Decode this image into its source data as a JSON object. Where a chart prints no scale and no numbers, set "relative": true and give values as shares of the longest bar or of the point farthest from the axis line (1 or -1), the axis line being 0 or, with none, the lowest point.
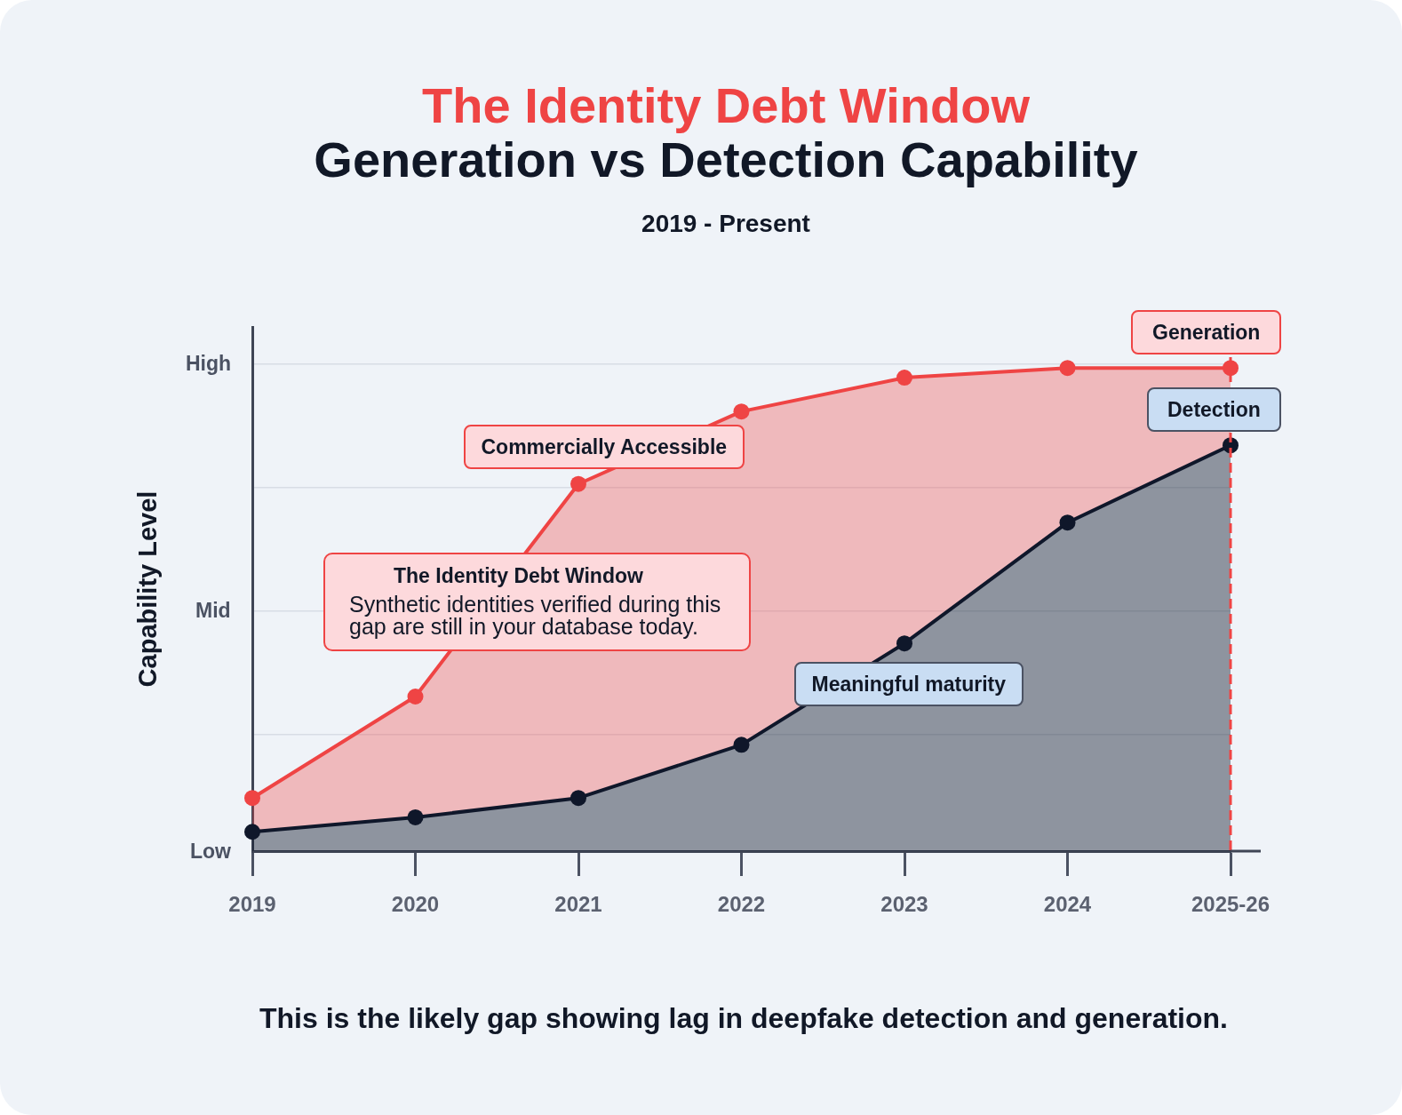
{
  "chart_data": {
    "type": "area",
    "title": "The Identity Debt Window",
    "subtitle": "Generation vs Detection Capability",
    "ylabel": "Capability Level",
    "categories": [
      "2019",
      "2020",
      "2021",
      "2022",
      "2023",
      "2024",
      "2025-26"
    ],
    "series": [
      {
        "name": "Generation",
        "color": "#ef4444",
        "values": [
          0.11,
          0.32,
          0.76,
          0.91,
          0.98,
          1,
          1
        ]
      },
      {
        "name": "Detection",
        "color": "#0f172a",
        "values": [
          0.04,
          0.07,
          0.11,
          0.22,
          0.43,
          0.68,
          0.84
        ]
      }
    ],
    "relative": true,
    "grid": "y",
    "legend": false,
    "marker": "circle",
    "line_style": "solid",
    "ref_lines": [
      {
        "axis": "x",
        "value": "2025-26",
        "color": "#ef4444",
        "line_style": "dashed"
      }
    ],
    "annotations": [
      "2019 - Present",
      "High",
      "Mid",
      "Low",
      "The Identity Debt Window",
      "Synthetic identities verified during this gap are still in your database today.",
      "This is the likely gap showing lag in deepfake detection and generation.",
      {
        "text": "Commercially Accessible",
        "x": "2021",
        "y": 0.76
      },
      {
        "text": "Meaningful maturity",
        "x": "2023",
        "y": 0.43
      }
    ]
  }
}
